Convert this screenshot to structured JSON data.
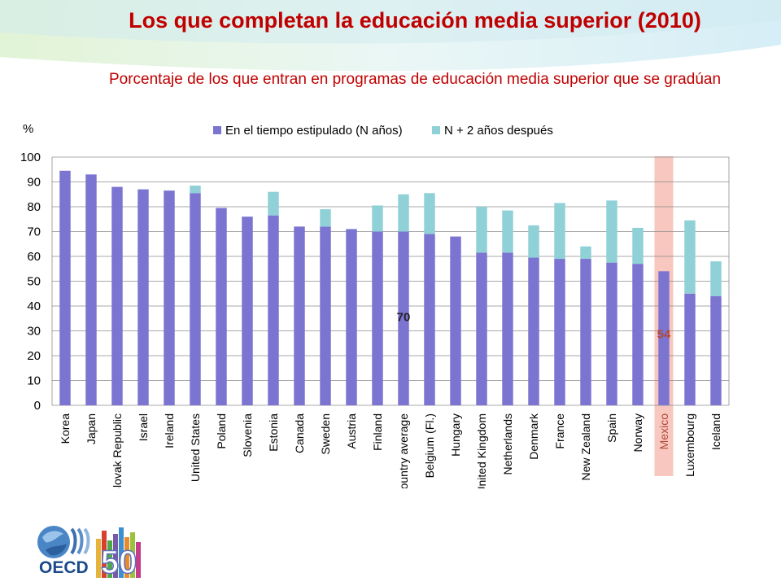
{
  "header": {
    "title": "Los que completan la educación media superior (2010)",
    "subtitle": "Porcentaje de los que entran en programas de educación media superior que se gradúan"
  },
  "logo": {
    "text": "OECD",
    "number": "50"
  },
  "colors": {
    "title": "#c00000",
    "series_on_time": "#7b74d1",
    "series_plus_two": "#8fd1d6",
    "highlight": "#f7c7c0",
    "label_average": "#222222",
    "label_mexico": "#b04a35"
  },
  "chart_data": {
    "type": "bar",
    "stacked": true,
    "ylabel": "%",
    "ylim": [
      0,
      100
    ],
    "yticks": [
      0,
      10,
      20,
      30,
      40,
      50,
      60,
      70,
      80,
      90,
      100
    ],
    "grid": true,
    "legend_position": "top",
    "categories": [
      "Korea",
      "Japan",
      "Slovak Republic",
      "Israel",
      "Ireland",
      "United States",
      "Poland",
      "Slovenia",
      "Estonia",
      "Canada",
      "Sweden",
      "Austria",
      "Finland",
      "Country average",
      "Belgium (Fl.)",
      "Hungary",
      "United Kingdom",
      "Netherlands",
      "Denmark",
      "France",
      "New Zealand",
      "Spain",
      "Norway",
      "Mexico",
      "Luxembourg",
      "Iceland"
    ],
    "series": [
      {
        "name": "En el tiempo estipulado (N años)",
        "values": [
          94.5,
          93,
          88,
          87,
          86.5,
          85.5,
          79.5,
          76,
          76.5,
          72,
          72,
          71,
          70,
          70,
          69,
          68,
          61.5,
          61.5,
          59.5,
          59,
          59,
          57.5,
          57,
          54,
          45,
          44
        ]
      },
      {
        "name": "N + 2 años después",
        "values": [
          0,
          0,
          0,
          0,
          0,
          3,
          0,
          0,
          9.5,
          0,
          7,
          0,
          10.5,
          15,
          16.5,
          0,
          18.5,
          17,
          13,
          22.5,
          5,
          25,
          14.5,
          0,
          29.5,
          14
        ]
      }
    ],
    "highlight": "Mexico",
    "annotations": [
      {
        "category": "Country average",
        "text": "70",
        "y": 34
      },
      {
        "category": "Mexico",
        "text": "54",
        "y": 27
      }
    ]
  }
}
